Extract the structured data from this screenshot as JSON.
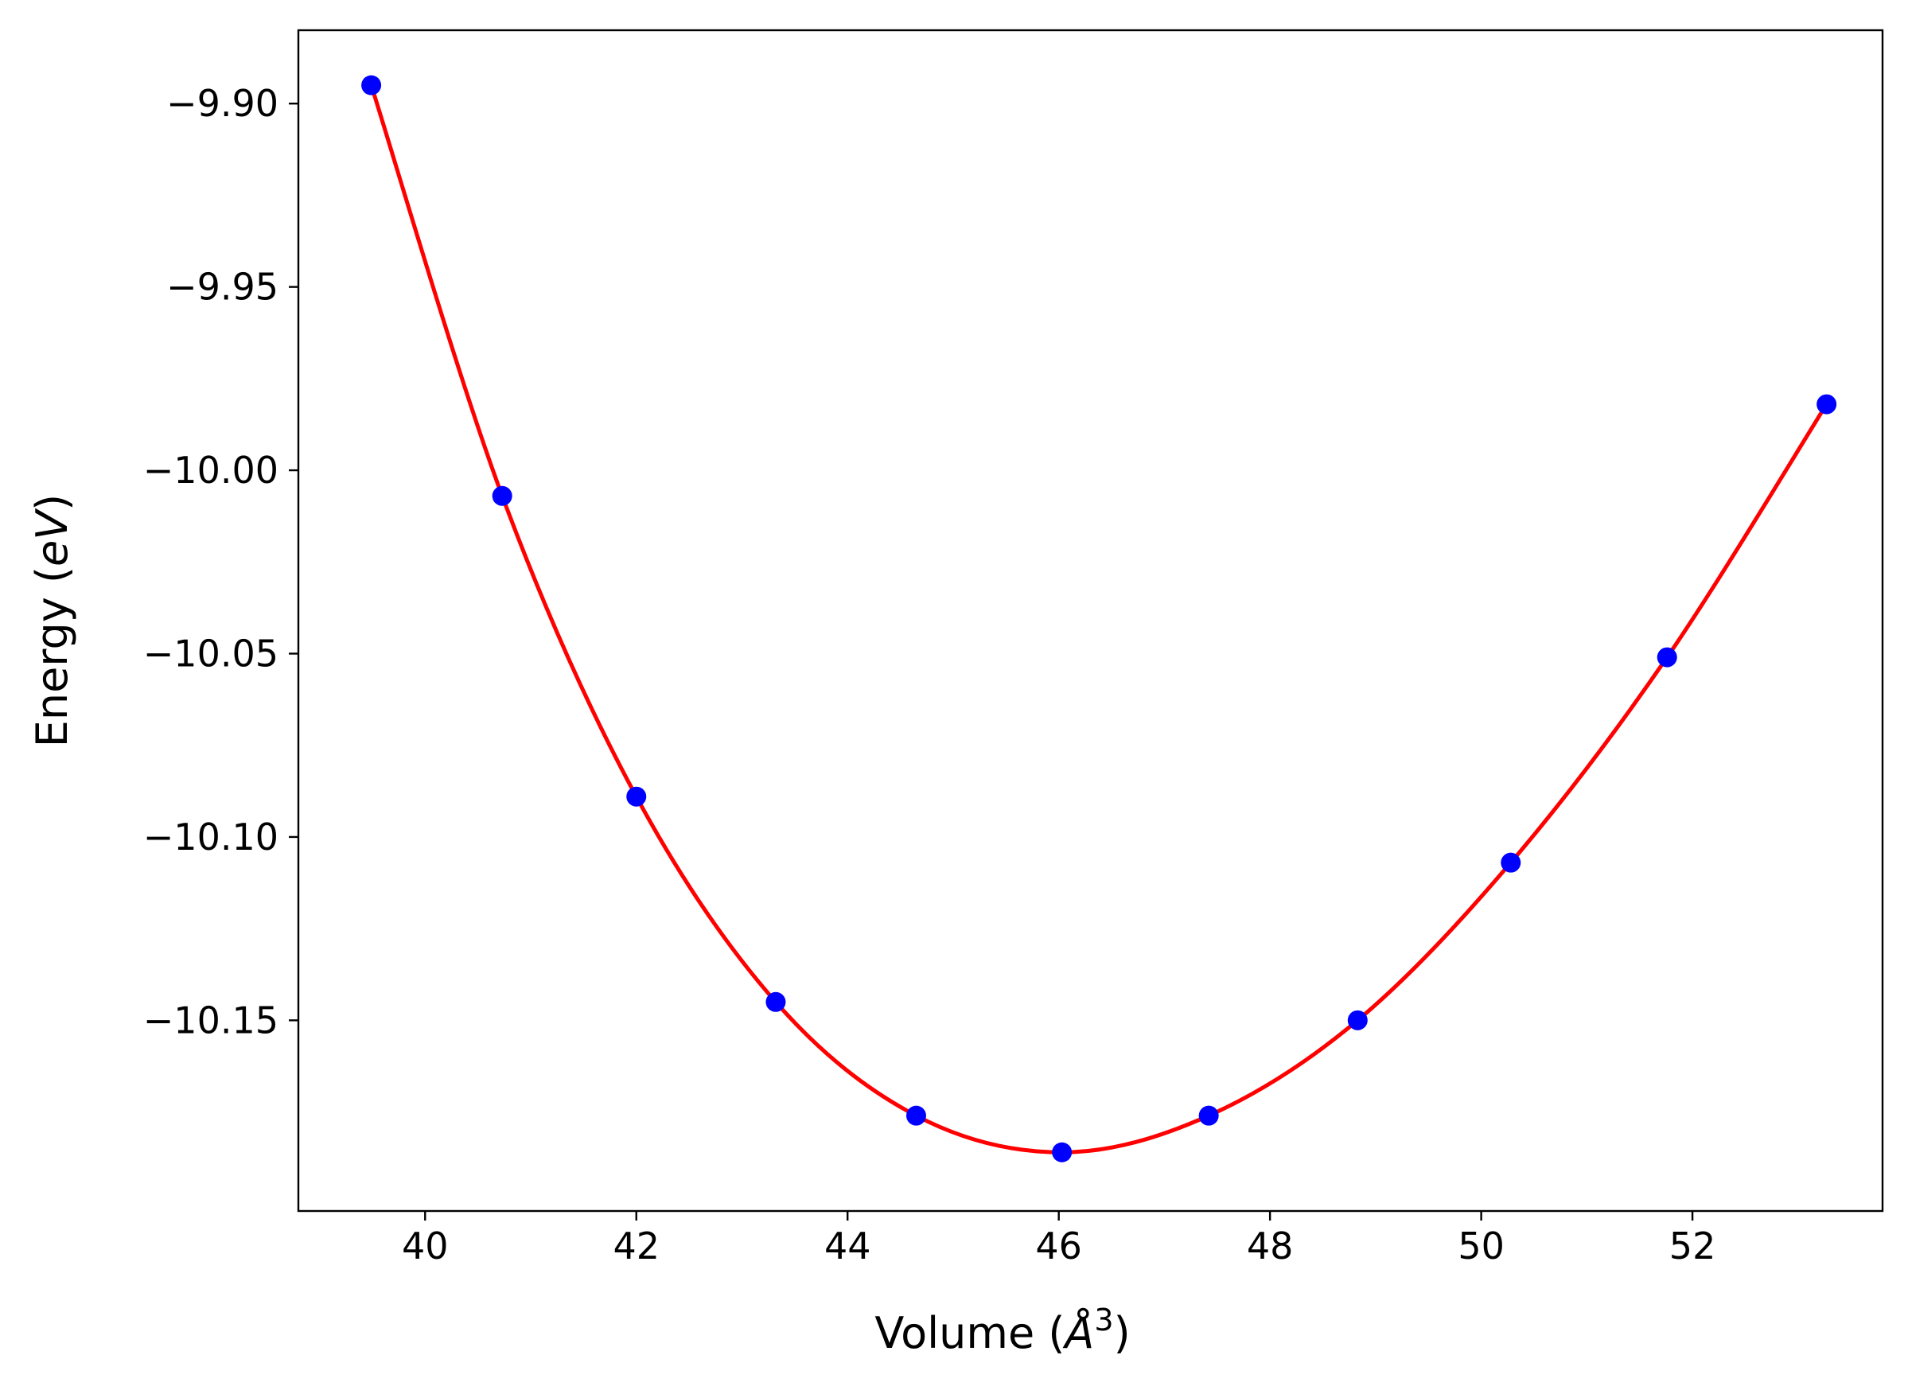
{
  "chart_data": {
    "type": "line",
    "title": "",
    "xlabel": "Volume (Å³)",
    "xlabel_main": "Volume (",
    "xlabel_unit_base": "Å",
    "xlabel_unit_exp": "3",
    "xlabel_close": ")",
    "ylabel": "Energy (eV)",
    "ylabel_main": "Energy (",
    "ylabel_unit": "eV",
    "ylabel_close": ")",
    "xlim": [
      38.8,
      53.8
    ],
    "ylim": [
      -10.202,
      -9.88
    ],
    "x_ticks": [
      40,
      42,
      44,
      46,
      48,
      50,
      52
    ],
    "x_tick_labels": [
      "40",
      "42",
      "44",
      "46",
      "48",
      "50",
      "52"
    ],
    "y_ticks": [
      -9.9,
      -9.95,
      -10.0,
      -10.05,
      -10.1,
      -10.15
    ],
    "y_tick_labels": [
      "−9.90",
      "−9.95",
      "−10.00",
      "−10.05",
      "−10.10",
      "−10.15"
    ],
    "grid": false,
    "legend": "none",
    "series": [
      {
        "kind": "points",
        "color": "#0000ff",
        "x": [
          39.49,
          40.73,
          42.0,
          43.32,
          44.65,
          46.03,
          47.42,
          48.83,
          50.28,
          51.76,
          53.27
        ],
        "y": [
          -9.895,
          -10.007,
          -10.089,
          -10.145,
          -10.176,
          -10.186,
          -10.176,
          -10.15,
          -10.107,
          -10.051,
          -9.982
        ]
      },
      {
        "kind": "fit-curve",
        "color": "#ff0000",
        "x": [
          39.49,
          40.73,
          42.0,
          43.32,
          44.65,
          46.03,
          47.42,
          48.83,
          50.28,
          51.76,
          53.27
        ],
        "y": [
          -9.895,
          -10.007,
          -10.089,
          -10.145,
          -10.176,
          -10.186,
          -10.176,
          -10.15,
          -10.107,
          -10.051,
          -9.982
        ]
      }
    ]
  }
}
